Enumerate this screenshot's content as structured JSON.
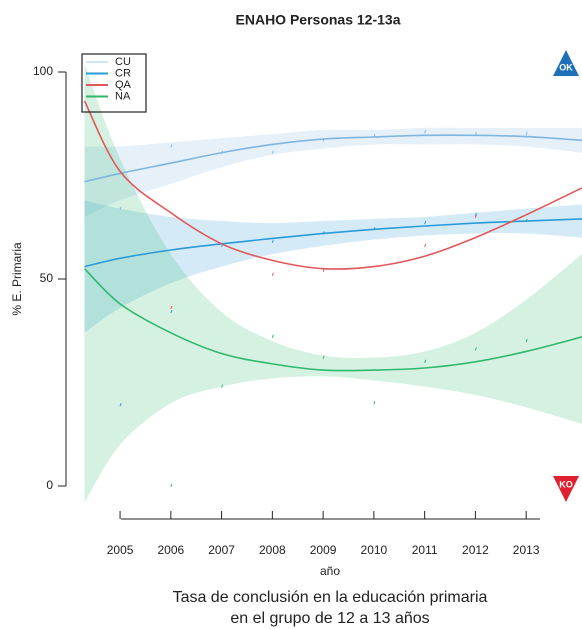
{
  "chart_data": {
    "type": "line",
    "title": "ENAHO Personas 12-13a",
    "ylabel": "% E. Primaria",
    "xlabel": "año",
    "caption": [
      "Tasa de conclusión en la educación primaria",
      "en el grupo de 12 a 13 años"
    ],
    "badges": [
      "OK",
      "KO"
    ],
    "xlim": [
      2004.25,
      2014.1
    ],
    "xticks": [
      2005,
      2006,
      2007,
      2008,
      2009,
      2010,
      2011,
      2012,
      2013
    ],
    "ylim": [
      0,
      100
    ],
    "yticks": [
      0,
      50,
      100
    ],
    "legend": "top-left",
    "x": [
      2004.3,
      2005,
      2006,
      2007,
      2008,
      2009,
      2010,
      2011,
      2012,
      2013,
      2014.1
    ],
    "series": [
      {
        "name": "CU",
        "color": "#7fb6e0",
        "values": [
          73.5,
          75.5,
          78,
          80.5,
          82.5,
          83.8,
          84.3,
          84.7,
          84.7,
          84.4,
          83.5
        ],
        "band_low": [
          65,
          69,
          73,
          77,
          80,
          81.5,
          82.5,
          82.5,
          82.5,
          82,
          80.5
        ],
        "band_high": [
          82,
          82,
          83,
          84,
          85,
          86,
          86,
          86.5,
          86.5,
          86.5,
          86.5
        ],
        "point_x": [
          2005,
          2006,
          2007,
          2008,
          2009,
          2010,
          2011,
          2012,
          2013
        ],
        "points": [
          67,
          82,
          80.5,
          80.5,
          83.5,
          84.5,
          85.5,
          85,
          85
        ]
      },
      {
        "name": "CR",
        "color": "#2a9bd8",
        "values": [
          53,
          55,
          57,
          58.5,
          59.8,
          61,
          62,
          62.8,
          63.5,
          64,
          64.5
        ],
        "band_low": [
          37,
          43,
          49,
          53,
          56,
          58,
          59.5,
          60.5,
          61,
          61,
          60
        ],
        "band_high": [
          69,
          67,
          65,
          64,
          63.5,
          64,
          64.5,
          65,
          66,
          67,
          68
        ],
        "point_x": [
          2005,
          2006,
          2007,
          2008,
          2009,
          2010,
          2011,
          2012,
          2013
        ],
        "points": [
          19.5,
          42,
          58,
          59,
          61,
          62,
          63.5,
          65.5,
          64
        ]
      },
      {
        "name": "QA",
        "color": "#e0585a",
        "values": [
          93,
          76,
          66,
          58.5,
          54.5,
          52.5,
          53,
          55.5,
          60,
          65.5,
          72
        ],
        "point_x": [
          2006,
          2008,
          2009,
          2011,
          2012
        ],
        "points": [
          43,
          51,
          52,
          58,
          65
        ]
      },
      {
        "name": "NA",
        "color": "#2fb86e",
        "values": [
          52.5,
          44,
          37,
          32,
          29.5,
          28,
          28,
          28.5,
          30,
          32.5,
          36
        ],
        "band_low": [
          -4,
          10,
          20,
          24,
          26,
          26.5,
          25.5,
          24,
          22,
          19,
          15
        ],
        "band_high": [
          102,
          79,
          56,
          42,
          35,
          31.5,
          31,
          32.5,
          37,
          45,
          56
        ],
        "point_x": [
          2006,
          2007,
          2008,
          2009,
          2010,
          2011,
          2012,
          2013
        ],
        "points": [
          0,
          24,
          36,
          31,
          20,
          30,
          33,
          35
        ]
      }
    ]
  }
}
